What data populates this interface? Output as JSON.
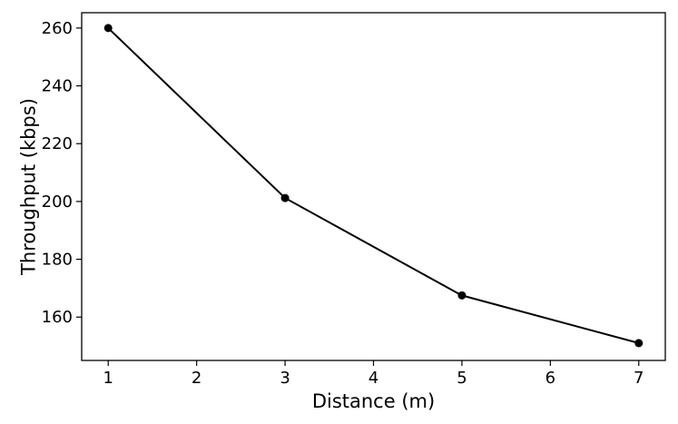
{
  "chart_data": {
    "type": "line",
    "title": "",
    "xlabel": "Distance (m)",
    "ylabel": "Throughput (kbps)",
    "x": [
      1,
      3,
      5,
      7
    ],
    "series": [
      {
        "values": [
          260,
          201.2,
          167.5,
          151
        ]
      }
    ],
    "xlim": [
      0.7,
      7.3
    ],
    "ylim": [
      145,
      265.3
    ],
    "xticks": [
      1,
      2,
      3,
      4,
      5,
      6,
      7
    ],
    "yticks": [
      160,
      180,
      200,
      220,
      240,
      260
    ],
    "grid": false,
    "legend": "none",
    "colors": {
      "line": "#000000",
      "marker": "#000000",
      "frame": "#000000"
    }
  }
}
